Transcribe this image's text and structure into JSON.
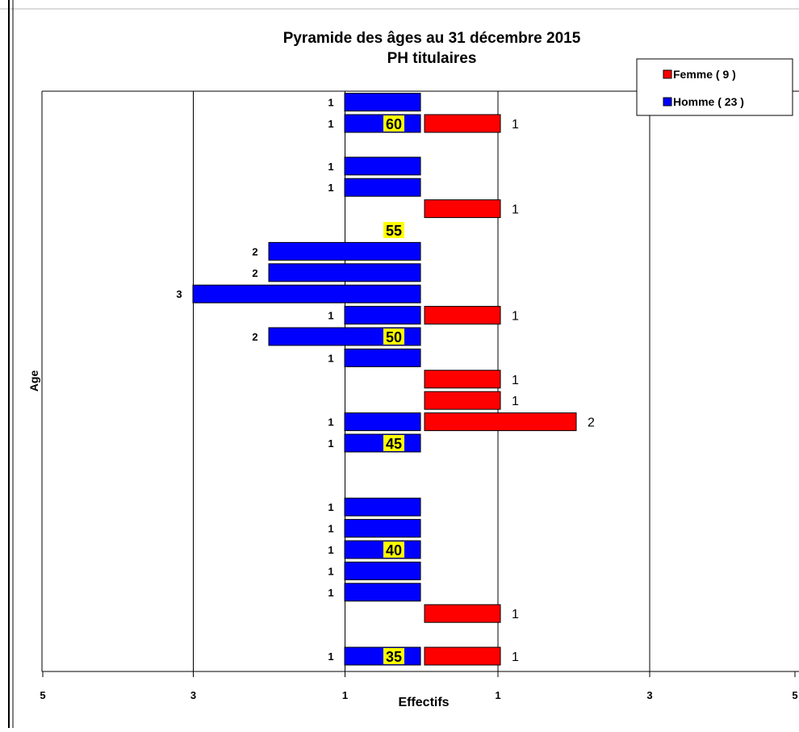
{
  "chart_data": {
    "type": "bar",
    "orientation": "horizontal-pyramid",
    "title": "Pyramide des âges au 31 décembre 2015",
    "subtitle": "PH titulaires",
    "xlabel": "Effectifs",
    "ylabel": "Age",
    "xlim": [
      -5,
      5
    ],
    "ylim": [
      34,
      62
    ],
    "x_ticks": [
      {
        "value": -5,
        "label": "5"
      },
      {
        "value": -3,
        "label": "3"
      },
      {
        "value": -1,
        "label": "1"
      },
      {
        "value": 1,
        "label": "1"
      },
      {
        "value": 3,
        "label": "3"
      },
      {
        "value": 5,
        "label": "5"
      }
    ],
    "age_labels": [
      "60",
      "55",
      "50",
      "45",
      "40",
      "35"
    ],
    "legend_position": "top-right",
    "grid": true,
    "series": [
      {
        "name": "Femme ( 9 )",
        "color": "#ff0000",
        "side": "right",
        "points": [
          {
            "age": 60,
            "value": 1,
            "label": "1"
          },
          {
            "age": 56,
            "value": 1,
            "label": "1"
          },
          {
            "age": 51,
            "value": 1,
            "label": "1"
          },
          {
            "age": 48,
            "value": 1,
            "label": "1"
          },
          {
            "age": 47,
            "value": 1,
            "label": "1"
          },
          {
            "age": 46,
            "value": 2,
            "label": "2"
          },
          {
            "age": 37,
            "value": 1,
            "label": "1"
          },
          {
            "age": 35,
            "value": 1,
            "label": "1"
          }
        ]
      },
      {
        "name": "Homme ( 23 )",
        "color": "#0000ff",
        "side": "left",
        "points": [
          {
            "age": 61,
            "value": 1,
            "label": "1"
          },
          {
            "age": 60,
            "value": 1,
            "label": "1"
          },
          {
            "age": 58,
            "value": 1,
            "label": "1"
          },
          {
            "age": 57,
            "value": 1,
            "label": "1"
          },
          {
            "age": 54,
            "value": 2,
            "label": "2"
          },
          {
            "age": 53,
            "value": 2,
            "label": "2"
          },
          {
            "age": 52,
            "value": 3,
            "label": "3"
          },
          {
            "age": 51,
            "value": 1,
            "label": "1"
          },
          {
            "age": 50,
            "value": 2,
            "label": "2"
          },
          {
            "age": 49,
            "value": 1,
            "label": "1"
          },
          {
            "age": 46,
            "value": 1,
            "label": "1"
          },
          {
            "age": 45,
            "value": 1,
            "label": "1"
          },
          {
            "age": 42,
            "value": 1,
            "label": "1"
          },
          {
            "age": 41,
            "value": 1,
            "label": "1"
          },
          {
            "age": 40,
            "value": 1,
            "label": "1"
          },
          {
            "age": 39,
            "value": 1,
            "label": "1"
          },
          {
            "age": 38,
            "value": 1,
            "label": "1"
          },
          {
            "age": 35,
            "value": 1,
            "label": "1"
          }
        ]
      }
    ]
  }
}
